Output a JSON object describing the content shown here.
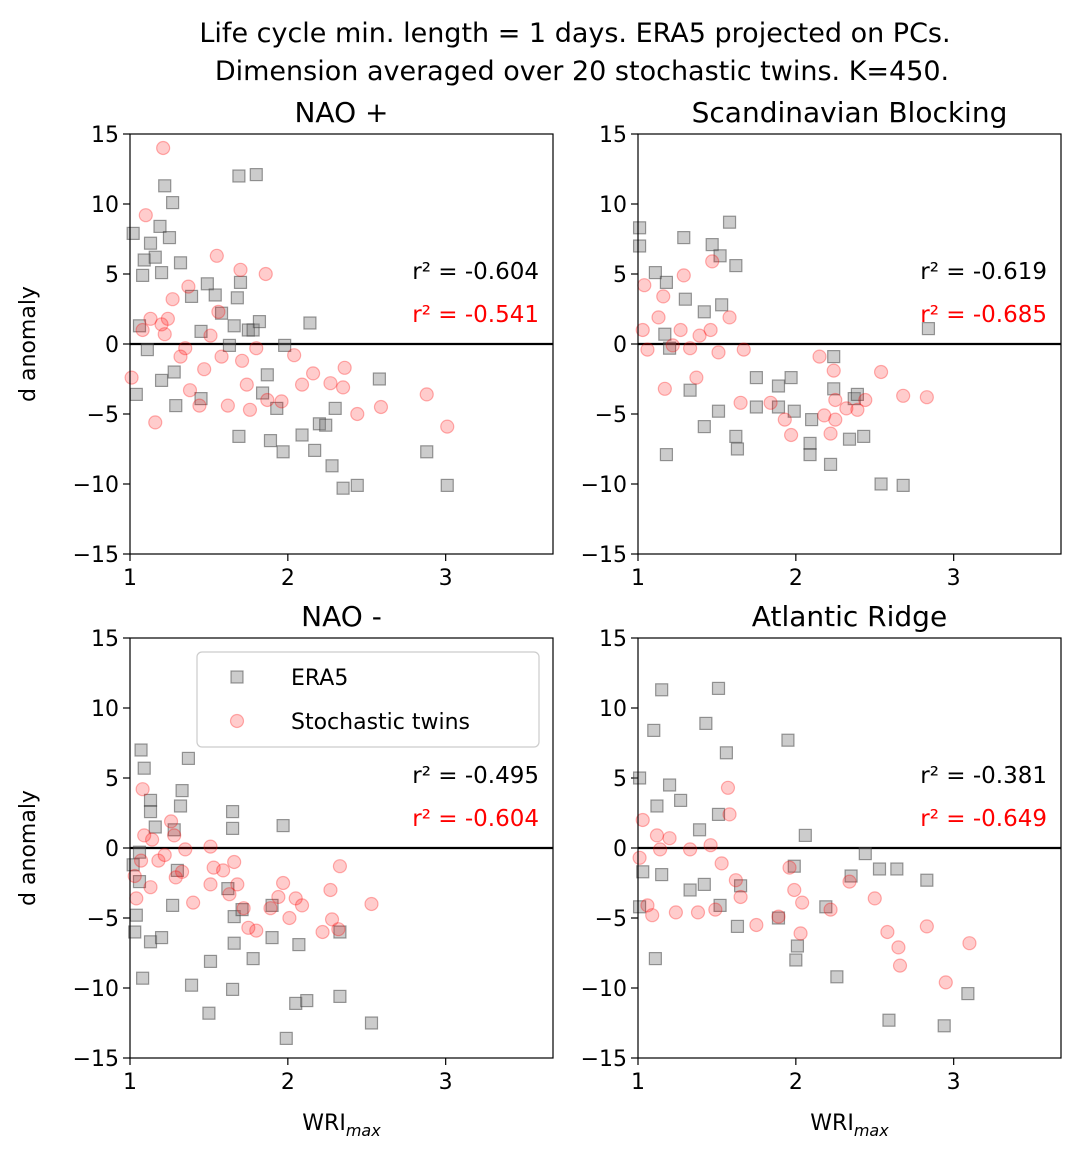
{
  "title": [
    "Life cycle min. length = 1 days. ERA5 projected on PCs.",
    "Dimension averaged over 20 stochastic twins. K=450."
  ],
  "chart_data": [
    {
      "type": "scatter",
      "title": "NAO +",
      "ylabel": "d anomaly",
      "xlim": [
        1,
        3.68
      ],
      "ylim": [
        -15,
        15
      ],
      "xticks": [
        1,
        2,
        3
      ],
      "yticks": [
        {
          "value": -15,
          "label": "−15"
        },
        {
          "value": -10,
          "label": "−10"
        },
        {
          "value": -5,
          "label": "−5"
        },
        0,
        5,
        10,
        15
      ],
      "hline": 0,
      "series": [
        {
          "name": "ERA5",
          "color": "gray",
          "marker": "square",
          "x": [
            1.02,
            1.06,
            1.08,
            1.09,
            1.13,
            1.16,
            1.19,
            1.22,
            1.25,
            1.27,
            1.32,
            1.2,
            1.04,
            1.2,
            1.29,
            1.28,
            1.39,
            1.45,
            1.49,
            1.54,
            1.58,
            1.63,
            1.66,
            1.68,
            1.69,
            1.7,
            1.69,
            1.75,
            1.78,
            1.8,
            1.82,
            1.84,
            1.87,
            1.89,
            1.93,
            1.97,
            1.98,
            2.09,
            2.14,
            2.17,
            2.2,
            2.24,
            2.28,
            2.3,
            2.35,
            2.44,
            2.58,
            2.88,
            3.01,
            1.11,
            1.45
          ],
          "y": [
            7.9,
            1.3,
            4.9,
            6.0,
            7.2,
            6.2,
            8.4,
            11.3,
            7.6,
            10.1,
            5.8,
            5.1,
            -3.6,
            -2.6,
            -4.4,
            -2.0,
            3.4,
            0.9,
            4.3,
            3.5,
            2.2,
            -0.1,
            1.3,
            3.3,
            12.0,
            4.4,
            -6.6,
            1.0,
            1.0,
            12.1,
            1.6,
            -3.5,
            -2.2,
            -6.9,
            -4.6,
            -7.7,
            -0.1,
            -6.5,
            1.5,
            -7.6,
            -5.7,
            -5.8,
            -8.7,
            -4.6,
            -10.3,
            -10.1,
            -2.5,
            -7.7,
            -10.1,
            -0.4,
            -3.9
          ]
        },
        {
          "name": "Stochastic twins",
          "color": "red",
          "marker": "circle",
          "x": [
            1.21,
            1.1,
            1.01,
            1.16,
            1.08,
            1.13,
            1.2,
            1.22,
            1.24,
            1.27,
            1.37,
            1.32,
            1.38,
            1.44,
            1.47,
            1.51,
            1.55,
            1.58,
            1.62,
            1.7,
            1.71,
            1.74,
            1.76,
            1.86,
            1.87,
            1.96,
            2.04,
            2.09,
            2.16,
            2.27,
            2.35,
            2.36,
            2.44,
            2.59,
            2.88,
            3.01,
            1.56,
            1.8,
            1.35
          ],
          "y": [
            14.0,
            9.2,
            -2.4,
            -5.6,
            1.0,
            1.8,
            1.4,
            0.7,
            1.8,
            3.2,
            4.1,
            -0.9,
            -3.3,
            -4.4,
            -1.8,
            0.6,
            6.3,
            -0.9,
            -4.4,
            5.3,
            -1.2,
            -2.9,
            -4.7,
            5.0,
            -4.0,
            -4.1,
            -0.8,
            -2.9,
            -2.1,
            -2.8,
            -3.1,
            -1.7,
            -5.0,
            -4.5,
            -3.6,
            -5.9,
            2.3,
            -0.3,
            -0.3
          ]
        }
      ],
      "annotations": [
        {
          "text": "r² = -0.604",
          "color": "black"
        },
        {
          "text": "r² = -0.541",
          "color": "red"
        }
      ]
    },
    {
      "type": "scatter",
      "title": "Scandinavian Blocking",
      "xlim": [
        1,
        3.68
      ],
      "ylim": [
        -15,
        15
      ],
      "xticks": [
        1,
        2,
        3
      ],
      "yticks": [
        {
          "value": -15,
          "label": "−15"
        },
        {
          "value": -10,
          "label": "−10"
        },
        {
          "value": -5,
          "label": "−5"
        },
        0,
        5,
        10,
        15
      ],
      "hline": 0,
      "series": [
        {
          "name": "ERA5",
          "color": "gray",
          "marker": "square",
          "x": [
            1.01,
            1.01,
            1.11,
            1.18,
            1.29,
            1.3,
            1.33,
            1.42,
            1.47,
            1.51,
            1.52,
            1.53,
            1.58,
            1.62,
            1.18,
            1.42,
            1.63,
            1.62,
            1.75,
            1.89,
            1.89,
            1.97,
            1.99,
            2.09,
            2.1,
            2.09,
            2.22,
            2.24,
            2.24,
            2.34,
            2.37,
            2.39,
            2.43,
            2.54,
            2.68,
            2.84,
            1.17,
            1.2,
            1.75
          ],
          "y": [
            8.3,
            7.0,
            5.1,
            4.4,
            7.6,
            3.2,
            -3.3,
            2.3,
            7.1,
            -4.8,
            6.3,
            2.8,
            8.7,
            5.6,
            -7.9,
            -5.9,
            -7.5,
            -6.6,
            -2.4,
            -3.0,
            -4.5,
            -2.4,
            -4.8,
            -7.1,
            -5.4,
            -7.9,
            -8.6,
            -0.9,
            -3.2,
            -6.8,
            -3.9,
            -3.6,
            -6.6,
            -10.0,
            -10.1,
            1.1,
            0.7,
            -0.3,
            -4.5
          ]
        },
        {
          "name": "Stochastic twins",
          "color": "red",
          "marker": "circle",
          "x": [
            1.04,
            1.03,
            1.06,
            1.13,
            1.16,
            1.17,
            1.22,
            1.27,
            1.29,
            1.33,
            1.37,
            1.39,
            1.46,
            1.47,
            1.51,
            1.58,
            1.65,
            1.67,
            1.84,
            1.93,
            1.97,
            2.15,
            2.18,
            2.22,
            2.25,
            2.32,
            2.39,
            2.44,
            2.54,
            2.68,
            2.83,
            2.24,
            2.25
          ],
          "y": [
            4.2,
            1.0,
            -0.4,
            1.9,
            3.4,
            -3.2,
            -0.1,
            1.0,
            4.9,
            -0.3,
            -2.4,
            0.6,
            1.0,
            5.9,
            -0.6,
            1.9,
            -4.2,
            -0.4,
            -4.2,
            -5.4,
            -6.5,
            -0.9,
            -5.1,
            -6.4,
            -5.4,
            -4.6,
            -4.7,
            -4.0,
            -2.0,
            -3.7,
            -3.8,
            -1.9,
            -4.0
          ]
        }
      ],
      "annotations": [
        {
          "text": "r² = -0.619",
          "color": "black"
        },
        {
          "text": "r² = -0.685",
          "color": "red"
        }
      ]
    },
    {
      "type": "scatter",
      "title": "NAO -",
      "ylabel": "d anomaly",
      "xlabel": {
        "text": "WRI",
        "sub": "max"
      },
      "xlim": [
        1,
        3.68
      ],
      "ylim": [
        -15,
        15
      ],
      "xticks": [
        1,
        2,
        3
      ],
      "yticks": [
        {
          "value": -15,
          "label": "−15"
        },
        {
          "value": -10,
          "label": "−10"
        },
        {
          "value": -5,
          "label": "−5"
        },
        0,
        5,
        10,
        15
      ],
      "hline": 0,
      "legend": "upper right",
      "series": [
        {
          "name": "ERA5",
          "color": "gray",
          "marker": "square",
          "x": [
            1.07,
            1.09,
            1.13,
            1.13,
            1.06,
            1.04,
            1.03,
            1.08,
            1.13,
            1.2,
            1.16,
            1.33,
            1.37,
            1.32,
            1.28,
            1.3,
            1.27,
            1.39,
            1.5,
            1.51,
            1.65,
            1.65,
            1.65,
            1.62,
            1.66,
            1.66,
            1.71,
            1.78,
            1.9,
            1.9,
            1.97,
            1.99,
            2.05,
            2.07,
            2.12,
            2.33,
            2.33,
            2.53,
            1.02,
            1.06
          ],
          "y": [
            7.0,
            5.7,
            3.4,
            2.6,
            -0.3,
            -4.8,
            -6.0,
            -9.3,
            -6.7,
            -6.4,
            1.5,
            4.1,
            6.4,
            3.0,
            1.3,
            -1.6,
            -4.1,
            -9.8,
            -11.8,
            -8.1,
            2.6,
            1.4,
            -10.1,
            -2.9,
            -6.8,
            -4.9,
            -4.4,
            -7.9,
            -6.4,
            -4.1,
            1.6,
            -13.6,
            -11.1,
            -6.9,
            -10.9,
            -10.6,
            -6.0,
            -12.5,
            -1.2,
            -2.4
          ]
        },
        {
          "name": "Stochastic twins",
          "color": "red",
          "marker": "circle",
          "x": [
            1.08,
            1.09,
            1.07,
            1.03,
            1.04,
            1.13,
            1.14,
            1.18,
            1.22,
            1.26,
            1.28,
            1.29,
            1.33,
            1.35,
            1.4,
            1.51,
            1.51,
            1.53,
            1.59,
            1.63,
            1.66,
            1.68,
            1.72,
            1.75,
            1.8,
            1.89,
            1.94,
            1.97,
            2.01,
            2.05,
            2.09,
            2.22,
            2.27,
            2.28,
            2.32,
            2.33,
            2.53
          ],
          "y": [
            4.2,
            0.9,
            -0.9,
            -2.0,
            -3.6,
            -2.8,
            0.6,
            -0.9,
            -0.5,
            1.9,
            0.9,
            -2.1,
            -1.7,
            -0.1,
            -3.9,
            0.1,
            -2.6,
            -1.4,
            -1.6,
            -3.3,
            -1.0,
            -2.6,
            -4.3,
            -5.7,
            -5.9,
            -4.3,
            -3.5,
            -2.5,
            -5.0,
            -3.6,
            -4.1,
            -6.0,
            -3.0,
            -5.1,
            -5.8,
            -1.3,
            -4.0
          ]
        }
      ],
      "annotations": [
        {
          "text": "r² = -0.495",
          "color": "black"
        },
        {
          "text": "r² = -0.604",
          "color": "red"
        }
      ]
    },
    {
      "type": "scatter",
      "title": "Atlantic Ridge",
      "xlabel": {
        "text": "WRI",
        "sub": "max"
      },
      "xlim": [
        1,
        3.68
      ],
      "ylim": [
        -15,
        15
      ],
      "xticks": [
        1,
        2,
        3
      ],
      "yticks": [
        {
          "value": -15,
          "label": "−15"
        },
        {
          "value": -10,
          "label": "−10"
        },
        {
          "value": -5,
          "label": "−5"
        },
        0,
        5,
        10,
        15
      ],
      "hline": 0,
      "series": [
        {
          "name": "ERA5",
          "color": "gray",
          "marker": "square",
          "x": [
            1.01,
            1.1,
            1.12,
            1.15,
            1.2,
            1.27,
            1.43,
            1.51,
            1.56,
            1.51,
            1.39,
            1.33,
            1.42,
            1.52,
            1.63,
            1.65,
            1.95,
            1.99,
            2.01,
            2.0,
            2.06,
            2.19,
            2.26,
            2.35,
            2.44,
            2.53,
            2.59,
            2.64,
            2.83,
            2.94,
            3.09,
            1.03,
            1.11,
            1.15,
            1.89,
            1.01
          ],
          "y": [
            5.0,
            8.4,
            3.0,
            11.3,
            4.5,
            3.4,
            8.9,
            11.4,
            6.8,
            2.4,
            1.3,
            -3.0,
            -2.6,
            -4.1,
            -5.6,
            -2.7,
            7.7,
            -1.3,
            -7.0,
            -8.0,
            0.9,
            -4.2,
            -9.2,
            -2.0,
            -0.4,
            -1.5,
            -12.3,
            -1.5,
            -2.3,
            -12.7,
            -10.4,
            -1.7,
            -7.9,
            -1.9,
            -5.0,
            -4.2
          ]
        },
        {
          "name": "Stochastic twins",
          "color": "red",
          "marker": "circle",
          "x": [
            1.01,
            1.03,
            1.06,
            1.12,
            1.09,
            1.14,
            1.2,
            1.24,
            1.33,
            1.38,
            1.46,
            1.49,
            1.53,
            1.57,
            1.58,
            1.62,
            1.65,
            1.75,
            1.89,
            1.96,
            1.99,
            2.03,
            2.04,
            2.22,
            2.34,
            2.5,
            2.58,
            2.65,
            2.66,
            2.83,
            2.95,
            3.1
          ],
          "y": [
            -0.7,
            2.0,
            -4.1,
            0.9,
            -4.8,
            -0.1,
            0.7,
            -4.6,
            -0.1,
            -4.6,
            0.2,
            -4.4,
            -1.1,
            4.3,
            2.4,
            -2.3,
            -3.5,
            -5.5,
            -4.9,
            -1.4,
            -3.0,
            -6.1,
            -3.9,
            -4.4,
            -2.4,
            -3.6,
            -6.0,
            -7.1,
            -8.4,
            -5.6,
            -9.6,
            -6.8
          ]
        }
      ],
      "annotations": [
        {
          "text": "r² = -0.381",
          "color": "black"
        },
        {
          "text": "r² = -0.649",
          "color": "red"
        }
      ]
    }
  ]
}
